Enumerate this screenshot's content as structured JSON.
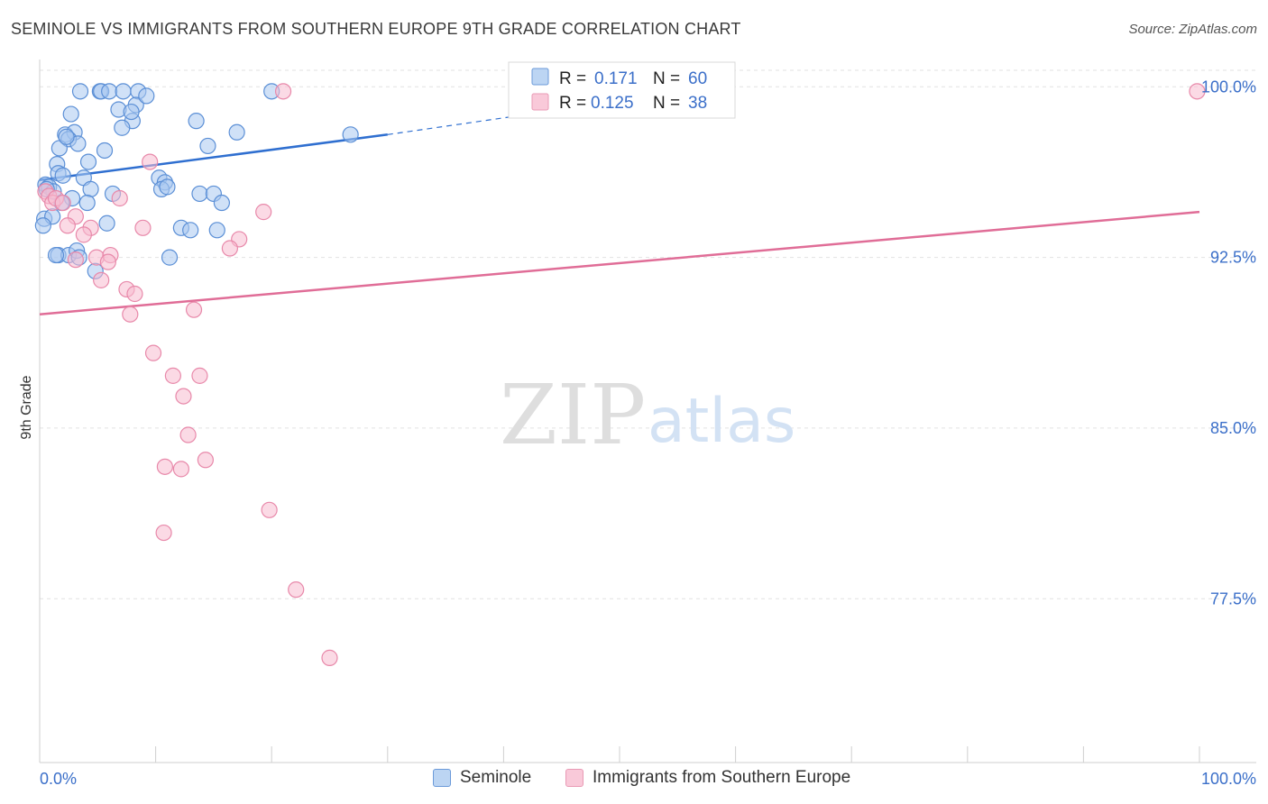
{
  "header": {
    "title": "SEMINOLE VS IMMIGRANTS FROM SOUTHERN EUROPE 9TH GRADE CORRELATION CHART",
    "source": "Source: ZipAtlas.com"
  },
  "watermark": {
    "zip": "ZIP",
    "atlas": "atlas"
  },
  "colors": {
    "seminole_fill": "#a9c8f0",
    "seminole_stroke": "#5b8fd6",
    "seminole_line": "#2f6fd0",
    "immigrants_fill": "#f7bcd0",
    "immigrants_stroke": "#e889aa",
    "immigrants_line": "#e06d97",
    "value_text": "#3b6fc9"
  },
  "legend": {
    "items": [
      {
        "r_label": "R =",
        "r_value": "0.171",
        "n_label": "N =",
        "n_value": "60"
      },
      {
        "r_label": "R =",
        "r_value": "0.125",
        "n_label": "N =",
        "n_value": "38"
      }
    ]
  },
  "bottom_legend": {
    "series_a": "Seminole",
    "series_b": "Immigrants from Southern Europe"
  },
  "chart_data": {
    "type": "scatter",
    "title": "SEMINOLE VS IMMIGRANTS FROM SOUTHERN EUROPE 9TH GRADE CORRELATION CHART",
    "xlabel": "",
    "ylabel": "9th Grade",
    "xlim": [
      0,
      100
    ],
    "ylim": [
      70.3,
      101.2
    ],
    "x_tick_labels": [
      "0.0%",
      "100.0%"
    ],
    "y_ticks": [
      77.5,
      85.0,
      92.5,
      100.0
    ],
    "y_tick_labels": [
      "77.5%",
      "85.0%",
      "92.5%",
      "100.0%"
    ],
    "grid": true,
    "series": [
      {
        "name": "Seminole",
        "r": 0.171,
        "n": 60,
        "trend": {
          "x": [
            0,
            30
          ],
          "y": [
            95.9,
            97.9
          ],
          "dashed_to": [
            45,
            99.0
          ]
        },
        "points": [
          [
            3.5,
            99.8
          ],
          [
            5.2,
            99.8
          ],
          [
            5.3,
            99.8
          ],
          [
            6,
            99.8
          ],
          [
            7.2,
            99.8
          ],
          [
            8.5,
            99.8
          ],
          [
            20,
            99.8
          ],
          [
            2.7,
            98.8
          ],
          [
            6.8,
            99
          ],
          [
            8,
            98.5
          ],
          [
            8.3,
            99.2
          ],
          [
            7.1,
            98.2
          ],
          [
            13.5,
            98.5
          ],
          [
            17,
            98
          ],
          [
            26.8,
            97.9
          ],
          [
            2.2,
            97.9
          ],
          [
            3,
            98
          ],
          [
            2.5,
            97.7
          ],
          [
            3.3,
            97.5
          ],
          [
            1.7,
            97.3
          ],
          [
            5.6,
            97.2
          ],
          [
            14.5,
            97.4
          ],
          [
            4.2,
            96.7
          ],
          [
            1.5,
            96.6
          ],
          [
            1.6,
            96.2
          ],
          [
            2,
            96.1
          ],
          [
            3.8,
            96
          ],
          [
            10.3,
            96
          ],
          [
            10.8,
            95.8
          ],
          [
            10.5,
            95.5
          ],
          [
            11,
            95.6
          ],
          [
            0.5,
            95.7
          ],
          [
            0.8,
            95.6
          ],
          [
            1.2,
            95.4
          ],
          [
            4.4,
            95.5
          ],
          [
            6.3,
            95.3
          ],
          [
            2.8,
            95.1
          ],
          [
            1.9,
            94.9
          ],
          [
            4.1,
            94.9
          ],
          [
            13.8,
            95.3
          ],
          [
            15,
            95.3
          ],
          [
            15.7,
            94.9
          ],
          [
            0.4,
            94.2
          ],
          [
            1.1,
            94.3
          ],
          [
            5.8,
            94
          ],
          [
            12.2,
            93.8
          ],
          [
            13,
            93.7
          ],
          [
            15.3,
            93.7
          ],
          [
            0.3,
            93.9
          ],
          [
            1.6,
            92.6
          ],
          [
            2.5,
            92.6
          ],
          [
            3.2,
            92.8
          ],
          [
            3.4,
            92.5
          ],
          [
            11.2,
            92.5
          ],
          [
            4.8,
            91.9
          ],
          [
            1.4,
            92.6
          ],
          [
            9.2,
            99.6
          ],
          [
            0.6,
            95.5
          ],
          [
            2.3,
            97.8
          ],
          [
            7.9,
            98.9
          ]
        ]
      },
      {
        "name": "Immigrants from Southern Europe",
        "r": 0.125,
        "n": 38,
        "trend": {
          "x": [
            0,
            100
          ],
          "y": [
            90.0,
            94.5
          ]
        },
        "points": [
          [
            21,
            99.8
          ],
          [
            99.8,
            99.8
          ],
          [
            9.5,
            96.7
          ],
          [
            0.5,
            95.4
          ],
          [
            0.8,
            95.2
          ],
          [
            1.1,
            94.9
          ],
          [
            1.4,
            95.1
          ],
          [
            2.0,
            94.9
          ],
          [
            6.9,
            95.1
          ],
          [
            19.3,
            94.5
          ],
          [
            3.1,
            94.3
          ],
          [
            2.4,
            93.9
          ],
          [
            4.4,
            93.8
          ],
          [
            8.9,
            93.8
          ],
          [
            3.8,
            93.5
          ],
          [
            17.2,
            93.3
          ],
          [
            16.4,
            92.9
          ],
          [
            4.9,
            92.5
          ],
          [
            6.1,
            92.6
          ],
          [
            3.1,
            92.4
          ],
          [
            5.9,
            92.3
          ],
          [
            5.3,
            91.5
          ],
          [
            7.5,
            91.1
          ],
          [
            8.2,
            90.9
          ],
          [
            7.8,
            90
          ],
          [
            13.3,
            90.2
          ],
          [
            9.8,
            88.3
          ],
          [
            11.5,
            87.3
          ],
          [
            13.8,
            87.3
          ],
          [
            12.4,
            86.4
          ],
          [
            12.8,
            84.7
          ],
          [
            14.3,
            83.6
          ],
          [
            10.8,
            83.3
          ],
          [
            12.2,
            83.2
          ],
          [
            19.8,
            81.4
          ],
          [
            10.7,
            80.4
          ],
          [
            22.1,
            77.9
          ],
          [
            25,
            74.9
          ]
        ]
      }
    ]
  }
}
